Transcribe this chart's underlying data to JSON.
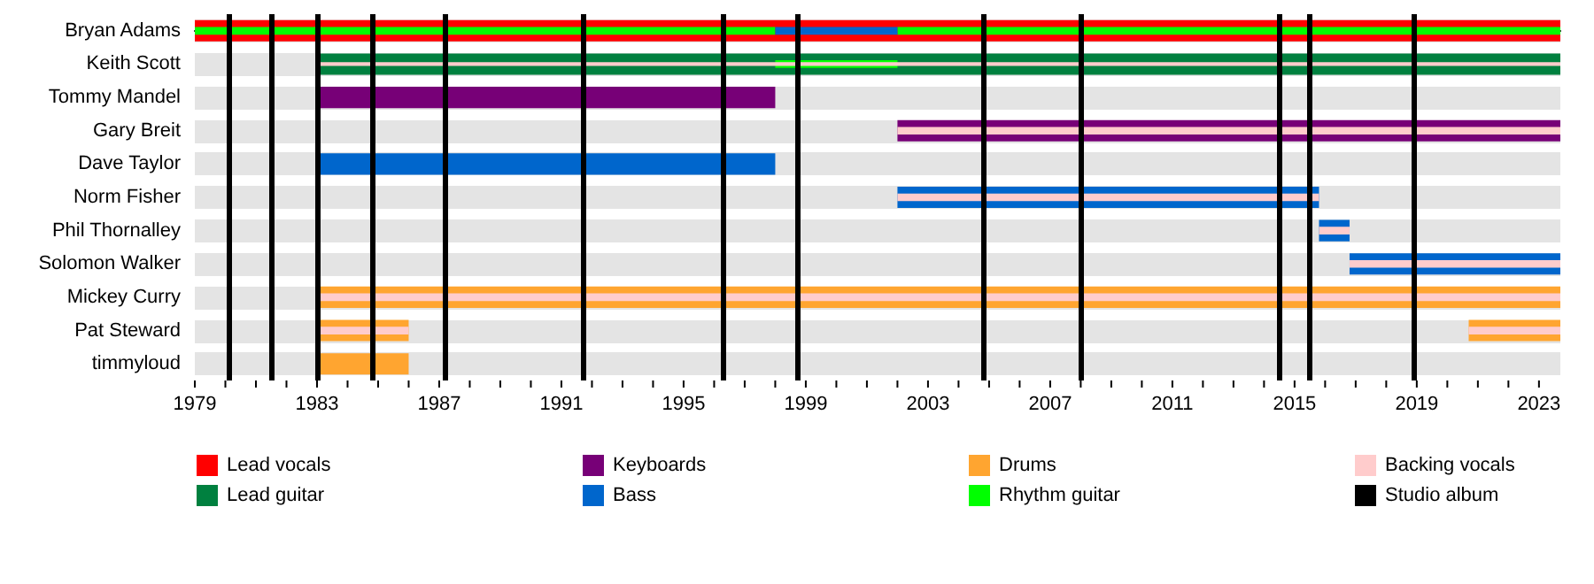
{
  "chart_data": {
    "type": "bar",
    "orientation": "horizontal",
    "grid": "y",
    "legend": "bottom",
    "categories": [
      "Bryan Adams",
      "Keith Scott",
      "Tommy Mandel",
      "Gary Breit",
      "Dave Taylor",
      "Norm Fisher",
      "Phil Thornalley",
      "Solomon Walker",
      "Mickey Curry",
      "Pat Steward",
      "timmyloud"
    ],
    "xlim": [
      1979,
      2023.7
    ],
    "xticks": [
      1979,
      {
        "value": 1980,
        "label": null
      },
      {
        "value": 1981,
        "label": null
      },
      {
        "value": 1982,
        "label": null
      },
      1983,
      {
        "value": 1984,
        "label": null
      },
      {
        "value": 1985,
        "label": null
      },
      {
        "value": 1986,
        "label": null
      },
      1987,
      {
        "value": 1988,
        "label": null
      },
      {
        "value": 1989,
        "label": null
      },
      {
        "value": 1990,
        "label": null
      },
      1991,
      {
        "value": 1992,
        "label": null
      },
      {
        "value": 1993,
        "label": null
      },
      {
        "value": 1994,
        "label": null
      },
      1995,
      {
        "value": 1996,
        "label": null
      },
      {
        "value": 1997,
        "label": null
      },
      {
        "value": 1998,
        "label": null
      },
      1999,
      {
        "value": 2000,
        "label": null
      },
      {
        "value": 2001,
        "label": null
      },
      {
        "value": 2002,
        "label": null
      },
      2003,
      {
        "value": 2004,
        "label": null
      },
      {
        "value": 2005,
        "label": null
      },
      {
        "value": 2006,
        "label": null
      },
      2007,
      {
        "value": 2008,
        "label": null
      },
      {
        "value": 2009,
        "label": null
      },
      {
        "value": 2010,
        "label": null
      },
      2011,
      {
        "value": 2012,
        "label": null
      },
      {
        "value": 2013,
        "label": null
      },
      {
        "value": 2014,
        "label": null
      },
      2015,
      {
        "value": 2016,
        "label": null
      },
      {
        "value": 2017,
        "label": null
      },
      {
        "value": 2018,
        "label": null
      },
      2019,
      {
        "value": 2020,
        "label": null
      },
      {
        "value": 2021,
        "label": null
      },
      {
        "value": 2022,
        "label": null
      },
      2023
    ],
    "series": [
      {
        "name": "Lead vocals",
        "color": "#ff0000",
        "base": [
          1979,
          null,
          null,
          null,
          null,
          null,
          null,
          null,
          null,
          null,
          null
        ],
        "values": [
          44.7,
          null,
          null,
          null,
          null,
          null,
          null,
          null,
          null,
          null,
          null
        ]
      },
      {
        "name": "Lead guitar",
        "color": "#00803f",
        "base": [
          null,
          1983,
          null,
          null,
          null,
          null,
          null,
          null,
          null,
          null,
          null
        ],
        "values": [
          null,
          40.7,
          null,
          null,
          null,
          null,
          null,
          null,
          null,
          null,
          null
        ]
      },
      {
        "name": "Keyboards",
        "color": "#770077",
        "base": [
          null,
          null,
          1983,
          2002,
          null,
          null,
          null,
          null,
          null,
          null,
          null
        ],
        "values": [
          null,
          null,
          15,
          21.7,
          null,
          null,
          null,
          null,
          null,
          null,
          null
        ]
      },
      {
        "name": "Bass",
        "color": "#0066cc",
        "base": [
          null,
          null,
          null,
          null,
          1983,
          2002,
          2015.8,
          2016.8,
          null,
          null,
          null
        ],
        "values": [
          null,
          null,
          null,
          null,
          15,
          13.8,
          1,
          6.9,
          null,
          null,
          null
        ]
      },
      {
        "name": "Drums",
        "color": "#ffa530",
        "base": [
          null,
          null,
          null,
          null,
          null,
          null,
          null,
          null,
          1983,
          1983,
          1983
        ],
        "values": [
          null,
          null,
          null,
          null,
          null,
          null,
          null,
          null,
          40.7,
          3,
          3
        ]
      },
      {
        "color": "#ffa530",
        "base": [
          null,
          null,
          null,
          null,
          null,
          null,
          null,
          null,
          null,
          2020.7,
          null
        ],
        "values": [
          null,
          null,
          null,
          null,
          null,
          null,
          null,
          null,
          null,
          3,
          null
        ]
      },
      {
        "name": "Rhythm guitar",
        "color": "#00ff00",
        "base": [
          1979,
          1998,
          null,
          null,
          null,
          null,
          null,
          null,
          null,
          null,
          null
        ],
        "values": [
          19,
          4,
          null,
          null,
          null,
          null,
          null,
          null,
          null,
          null,
          null
        ]
      },
      {
        "color": "#00ff00",
        "base": [
          2002,
          null,
          null,
          null,
          null,
          null,
          null,
          null,
          null,
          null,
          null
        ],
        "values": [
          21.7,
          null,
          null,
          null,
          null,
          null,
          null,
          null,
          null,
          null,
          null
        ]
      },
      {
        "color": "#0066cc",
        "base": [
          1998,
          null,
          null,
          null,
          null,
          null,
          null,
          null,
          null,
          null,
          null
        ],
        "values": [
          4,
          null,
          null,
          null,
          null,
          null,
          null,
          null,
          null,
          null,
          null
        ]
      },
      {
        "name": "Backing vocals",
        "color": "#ffcccc",
        "base": [
          null,
          1983,
          null,
          2002,
          null,
          2002,
          2015.8,
          2016.8,
          1983,
          1983,
          null
        ],
        "values": [
          null,
          40.7,
          null,
          21.7,
          null,
          13.8,
          1,
          6.9,
          40.7,
          3,
          null
        ]
      },
      {
        "color": "#ffcccc",
        "base": [
          null,
          null,
          null,
          null,
          null,
          null,
          null,
          null,
          null,
          2020.7,
          null
        ],
        "values": [
          null,
          null,
          null,
          null,
          null,
          null,
          null,
          null,
          null,
          3,
          null
        ]
      }
    ],
    "ref_lines": [
      {
        "axis": "x",
        "value": 1980.1,
        "label": "Studio album",
        "color": "#000000"
      },
      {
        "axis": "x",
        "value": 1981.5,
        "color": "#000000"
      },
      {
        "axis": "x",
        "value": 1983.0,
        "color": "#000000"
      },
      {
        "axis": "x",
        "value": 1984.8,
        "color": "#000000"
      },
      {
        "axis": "x",
        "value": 1987.2,
        "color": "#000000"
      },
      {
        "axis": "x",
        "value": 1991.7,
        "color": "#000000"
      },
      {
        "axis": "x",
        "value": 1996.3,
        "color": "#000000"
      },
      {
        "axis": "x",
        "value": 1998.7,
        "color": "#000000"
      },
      {
        "axis": "x",
        "value": 2004.8,
        "color": "#000000"
      },
      {
        "axis": "x",
        "value": 2008.0,
        "color": "#000000"
      },
      {
        "axis": "x",
        "value": 2014.5,
        "color": "#000000"
      },
      {
        "axis": "x",
        "value": 2015.5,
        "color": "#000000"
      },
      {
        "axis": "x",
        "value": 2018.9,
        "color": "#000000"
      }
    ]
  }
}
